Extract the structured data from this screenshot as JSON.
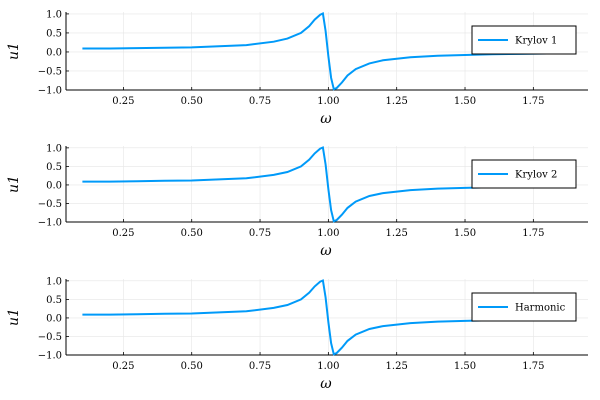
{
  "chart_data": [
    {
      "type": "line",
      "xlabel": "ω",
      "ylabel": "u1",
      "xlim": [
        0.04,
        1.95
      ],
      "ylim": [
        -1.0,
        1.05
      ],
      "x_ticks": [
        0.25,
        0.5,
        0.75,
        1.0,
        1.25,
        1.5,
        1.75
      ],
      "x_tick_labels": [
        "0.25",
        "0.50",
        "0.75",
        "1.00",
        "1.25",
        "1.50",
        "1.75"
      ],
      "y_ticks": [
        -1.0,
        -0.5,
        0.0,
        0.5,
        1.0
      ],
      "y_tick_labels": [
        "−1.0",
        "−0.5",
        "0.0",
        "0.5",
        "1.0"
      ],
      "grid": true,
      "legend_position": "top-right",
      "series": [
        {
          "name": "Krylov 1",
          "color": "#009af9",
          "x": [
            0.1,
            0.2,
            0.3,
            0.4,
            0.5,
            0.6,
            0.7,
            0.8,
            0.85,
            0.9,
            0.93,
            0.95,
            0.97,
            0.98,
            0.99,
            1.0,
            1.01,
            1.02,
            1.03,
            1.05,
            1.07,
            1.1,
            1.15,
            1.2,
            1.3,
            1.4,
            1.5,
            1.6,
            1.7,
            1.8,
            1.9
          ],
          "y": [
            0.09,
            0.09,
            0.1,
            0.11,
            0.12,
            0.15,
            0.18,
            0.27,
            0.35,
            0.5,
            0.68,
            0.85,
            0.98,
            1.01,
            0.55,
            -0.12,
            -0.68,
            -0.98,
            -0.95,
            -0.8,
            -0.62,
            -0.45,
            -0.3,
            -0.22,
            -0.14,
            -0.1,
            -0.08,
            -0.06,
            -0.05,
            -0.04,
            -0.03
          ]
        }
      ]
    },
    {
      "type": "line",
      "xlabel": "ω",
      "ylabel": "u1",
      "xlim": [
        0.04,
        1.95
      ],
      "ylim": [
        -1.0,
        1.05
      ],
      "x_ticks": [
        0.25,
        0.5,
        0.75,
        1.0,
        1.25,
        1.5,
        1.75
      ],
      "x_tick_labels": [
        "0.25",
        "0.50",
        "0.75",
        "1.00",
        "1.25",
        "1.50",
        "1.75"
      ],
      "y_ticks": [
        -1.0,
        -0.5,
        0.0,
        0.5,
        1.0
      ],
      "y_tick_labels": [
        "−1.0",
        "−0.5",
        "0.0",
        "0.5",
        "1.0"
      ],
      "grid": true,
      "legend_position": "top-right",
      "series": [
        {
          "name": "Krylov 2",
          "color": "#009af9",
          "x": [
            0.1,
            0.2,
            0.3,
            0.4,
            0.5,
            0.6,
            0.7,
            0.8,
            0.85,
            0.9,
            0.93,
            0.95,
            0.97,
            0.98,
            0.99,
            1.0,
            1.01,
            1.02,
            1.03,
            1.05,
            1.07,
            1.1,
            1.15,
            1.2,
            1.3,
            1.4,
            1.5,
            1.6,
            1.7,
            1.8,
            1.9
          ],
          "y": [
            0.09,
            0.09,
            0.1,
            0.11,
            0.12,
            0.15,
            0.18,
            0.27,
            0.35,
            0.5,
            0.68,
            0.85,
            0.98,
            1.01,
            0.55,
            -0.12,
            -0.68,
            -0.98,
            -0.95,
            -0.8,
            -0.62,
            -0.45,
            -0.3,
            -0.22,
            -0.14,
            -0.1,
            -0.08,
            -0.06,
            -0.05,
            -0.04,
            -0.03
          ]
        }
      ]
    },
    {
      "type": "line",
      "xlabel": "ω",
      "ylabel": "u1",
      "xlim": [
        0.04,
        1.95
      ],
      "ylim": [
        -1.0,
        1.05
      ],
      "x_ticks": [
        0.25,
        0.5,
        0.75,
        1.0,
        1.25,
        1.5,
        1.75
      ],
      "x_tick_labels": [
        "0.25",
        "0.50",
        "0.75",
        "1.00",
        "1.25",
        "1.50",
        "1.75"
      ],
      "y_ticks": [
        -1.0,
        -0.5,
        0.0,
        0.5,
        1.0
      ],
      "y_tick_labels": [
        "−1.0",
        "−0.5",
        "0.0",
        "0.5",
        "1.0"
      ],
      "grid": true,
      "legend_position": "top-right",
      "series": [
        {
          "name": "Harmonic",
          "color": "#009af9",
          "x": [
            0.1,
            0.2,
            0.3,
            0.4,
            0.5,
            0.6,
            0.7,
            0.8,
            0.85,
            0.9,
            0.93,
            0.95,
            0.97,
            0.98,
            0.99,
            1.0,
            1.01,
            1.02,
            1.03,
            1.05,
            1.07,
            1.1,
            1.15,
            1.2,
            1.3,
            1.4,
            1.5,
            1.6,
            1.7,
            1.8,
            1.9
          ],
          "y": [
            0.09,
            0.09,
            0.1,
            0.11,
            0.12,
            0.15,
            0.18,
            0.27,
            0.35,
            0.5,
            0.68,
            0.85,
            0.98,
            1.01,
            0.55,
            -0.12,
            -0.68,
            -0.98,
            -0.95,
            -0.8,
            -0.62,
            -0.45,
            -0.3,
            -0.22,
            -0.14,
            -0.1,
            -0.08,
            -0.06,
            -0.05,
            -0.04,
            -0.03
          ]
        }
      ]
    }
  ]
}
